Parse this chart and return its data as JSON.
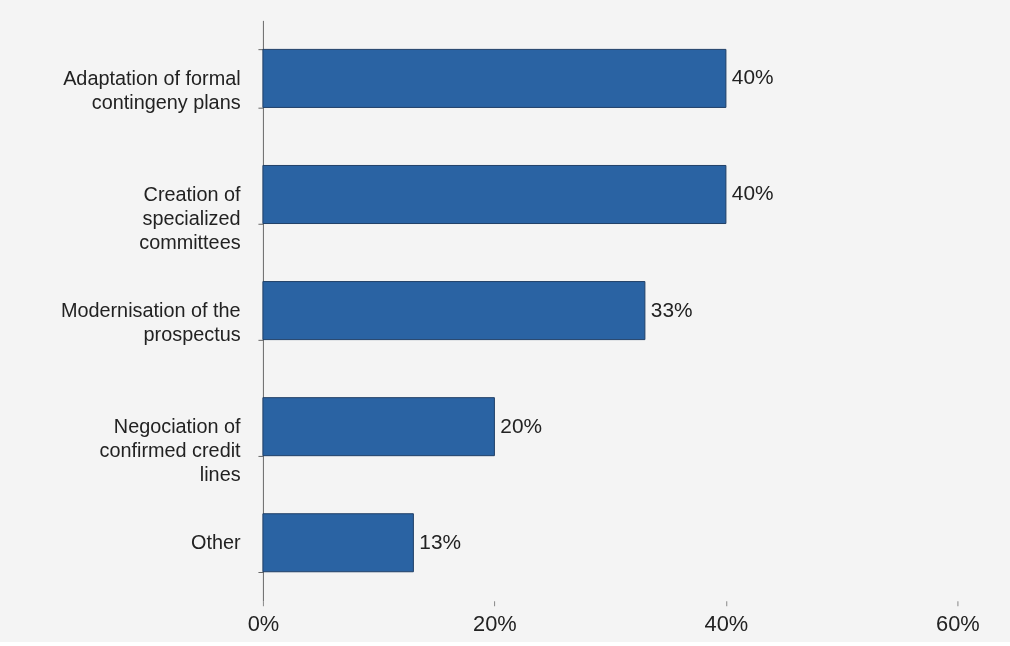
{
  "chart_data": {
    "type": "bar",
    "orientation": "horizontal",
    "categories": [
      "Adaptation of formal contingeny plans",
      "Creation of specialized committees",
      "Modernisation of the prospectus",
      "Negociation of confirmed credit lines",
      "Other"
    ],
    "values": [
      40,
      40,
      33,
      20,
      13
    ],
    "value_labels": [
      "40%",
      "40%",
      "33%",
      "20%",
      "13%"
    ],
    "color": "#2a63a3",
    "xlim": [
      0,
      60
    ],
    "xticks": [
      {
        "value": 0,
        "label": "0%"
      },
      {
        "value": 20,
        "label": "20%"
      },
      {
        "value": 40,
        "label": "40%"
      },
      {
        "value": 60,
        "label": "60%"
      }
    ],
    "grid": false
  }
}
